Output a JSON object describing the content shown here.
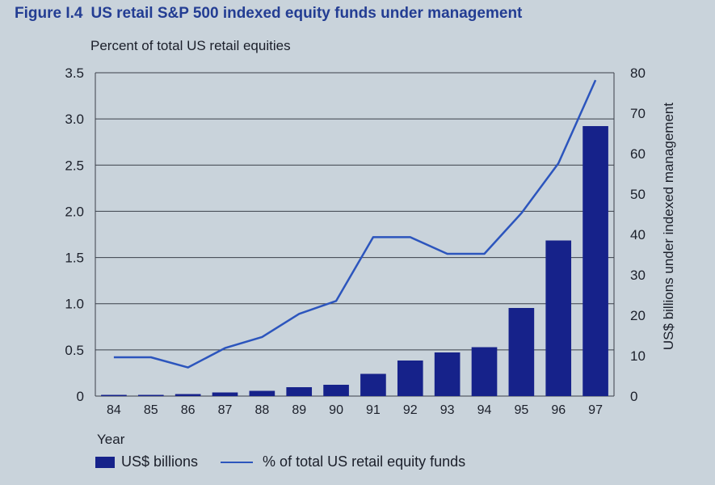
{
  "figure": {
    "number": "Figure I.4",
    "title": "US retail S&P 500 indexed equity funds under management"
  },
  "colors": {
    "bar": "#16228a",
    "line": "#2c55bd",
    "title": "#233d93",
    "grid": "#3a3f4a"
  },
  "chart_data": {
    "type": "bar+line",
    "title": "US retail S&P 500 indexed equity funds under management",
    "xlabel": "Year",
    "ylabel_left": "Percent of total US retail equities",
    "ylabel_right": "US$ billions under indexed management",
    "categories": [
      "84",
      "85",
      "86",
      "87",
      "88",
      "89",
      "90",
      "91",
      "92",
      "93",
      "94",
      "95",
      "96",
      "97"
    ],
    "ylim_left": [
      0,
      3.5
    ],
    "yticks_left": [
      "0",
      "0.5",
      "1.0",
      "1.5",
      "2.0",
      "2.5",
      "3.0",
      "3.5"
    ],
    "ylim_right": [
      0,
      80
    ],
    "yticks_right": [
      "0",
      "10",
      "20",
      "30",
      "40",
      "50",
      "60",
      "70",
      "80"
    ],
    "grid": true,
    "legend_position": "bottom",
    "series": [
      {
        "name": "US$ billions",
        "type": "bar",
        "axis": "right",
        "values": [
          0.3,
          0.3,
          0.5,
          0.9,
          1.3,
          2.2,
          2.8,
          5.5,
          8.8,
          10.8,
          12.1,
          21.8,
          38.5,
          66.8
        ]
      },
      {
        "name": "% of total US retail equity funds",
        "type": "line",
        "axis": "left",
        "values": [
          0.42,
          0.42,
          0.31,
          0.52,
          0.64,
          0.89,
          1.03,
          1.72,
          1.72,
          1.54,
          1.54,
          1.98,
          2.52,
          3.42
        ]
      }
    ]
  }
}
